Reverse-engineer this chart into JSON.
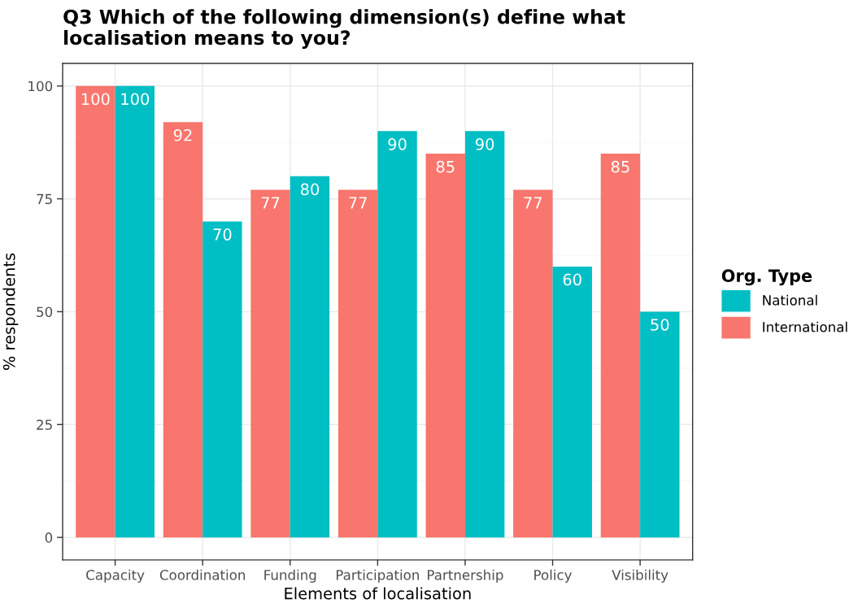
{
  "chart_data": {
    "type": "bar",
    "title": "Q3 Which of the following dimension(s) define what\nlocalisation means to you?",
    "xlabel": "Elements of localisation",
    "ylabel": "% respondents",
    "legend_title": "Org. Type",
    "categories": [
      "Capacity",
      "Coordination",
      "Funding",
      "Participation",
      "Partnership",
      "Policy",
      "Visibility"
    ],
    "series": [
      {
        "name": "International",
        "color": "#f8766d",
        "values": [
          100,
          92,
          77,
          77,
          85,
          77,
          85
        ]
      },
      {
        "name": "National",
        "color": "#00bfc4",
        "values": [
          100,
          70,
          80,
          90,
          90,
          60,
          50
        ]
      }
    ],
    "ylim": [
      -5,
      105
    ],
    "yticks": [
      0,
      25,
      50,
      75,
      100
    ],
    "grid": true,
    "legend": "right",
    "data_labels": true
  }
}
